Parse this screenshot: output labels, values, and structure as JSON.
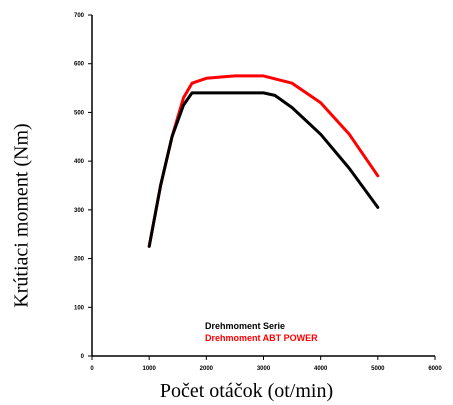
{
  "chart_data": {
    "type": "line",
    "xlabel": "Počet otáčok (ot/min)",
    "ylabel": "Krútiaci moment (Nm)",
    "xlim": [
      0,
      6000
    ],
    "ylim": [
      0,
      700
    ],
    "xticks": [
      "0",
      "1000",
      "2000",
      "3000",
      "4000",
      "5000",
      "6000"
    ],
    "yticks": [
      "0",
      "100",
      "200",
      "300",
      "400",
      "500",
      "600",
      "700"
    ],
    "legend_position": "bottom-center",
    "series": [
      {
        "name": "Drehmoment Serie",
        "color": "#000000",
        "x": [
          1000,
          1200,
          1400,
          1600,
          1750,
          2000,
          2500,
          3000,
          3200,
          3500,
          4000,
          4500,
          5000
        ],
        "y": [
          225,
          350,
          450,
          515,
          540,
          540,
          540,
          540,
          535,
          510,
          455,
          385,
          305
        ]
      },
      {
        "name": "Drehmoment ABT POWER",
        "color": "#ff0000",
        "x": [
          1000,
          1200,
          1400,
          1600,
          1750,
          2000,
          2500,
          3000,
          3500,
          4000,
          4500,
          5000
        ],
        "y": [
          225,
          350,
          450,
          530,
          560,
          570,
          575,
          575,
          560,
          520,
          455,
          370
        ]
      }
    ]
  }
}
